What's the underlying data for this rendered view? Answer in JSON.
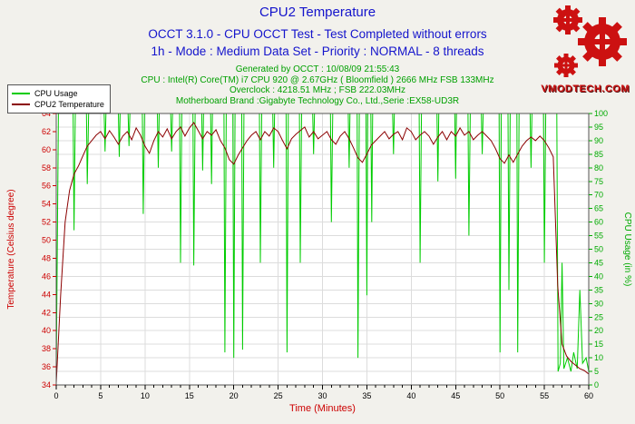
{
  "header": {
    "title": "CPU2 Temperature",
    "subtitle1": "OCCT 3.1.0 - CPU OCCT Test - Test Completed without errors",
    "subtitle2": "1h - Mode : Medium Data Set - Priority : NORMAL - 8 threads",
    "info_lines": [
      "Generated by OCCT : 10/08/09 21:55:43",
      "CPU : Intel(R) Core(TM) i7 CPU 920 @ 2.67GHz ( Bloomfield ) 2666 MHz FSB 133MHz",
      "Overclock : 4218.51 MHz ; FSB 222.03MHz",
      "Motherboard Brand :Gigabyte Technology Co., Ltd.,Serie :EX58-UD3R"
    ]
  },
  "legend": {
    "items": [
      {
        "label": "CPU Usage",
        "color": "#00CC00"
      },
      {
        "label": "CPU2 Temperature",
        "color": "#8B0000"
      }
    ]
  },
  "logo": {
    "text": "VMODTECH.COM"
  },
  "colors": {
    "title_text": "#1414CC",
    "info_text": "#00A000",
    "axis_left": "#CC0000",
    "axis_right": "#00AA00",
    "tick_x": "#000000",
    "grid": "#DCDCDC",
    "plot_border": "#555555",
    "page_bg": "#F2F1EC",
    "plot_bg": "#FFFFFF",
    "logo_red": "#CC1111"
  },
  "chart_data": {
    "type": "line",
    "title": "CPU2 Temperature",
    "grid": true,
    "legend_position": "top-left",
    "x_axis": {
      "title": "Time (Minutes)",
      "min": 0,
      "max": 60,
      "major_step": 5,
      "minor_step": 1
    },
    "left_axis": {
      "title": "Temperature (Celsius degree)",
      "min": 34,
      "max": 64,
      "step": 2
    },
    "right_axis": {
      "title": "CPU Usage (in %)",
      "min": 0,
      "max": 100,
      "step": 5
    },
    "series": [
      {
        "name": "CPU Usage",
        "axis": "right",
        "color": "#00CC00",
        "points": [
          [
            0,
            3
          ],
          [
            0.25,
            100
          ],
          [
            1.9,
            100
          ],
          [
            2,
            57
          ],
          [
            2.15,
            100
          ],
          [
            3.4,
            100
          ],
          [
            3.5,
            74
          ],
          [
            3.65,
            100
          ],
          [
            5.4,
            100
          ],
          [
            5.5,
            86
          ],
          [
            5.6,
            100
          ],
          [
            7,
            100
          ],
          [
            7.1,
            84
          ],
          [
            7.2,
            100
          ],
          [
            8.1,
            100
          ],
          [
            8.2,
            88
          ],
          [
            8.3,
            100
          ],
          [
            9.7,
            100
          ],
          [
            9.8,
            63
          ],
          [
            9.95,
            100
          ],
          [
            11.4,
            100
          ],
          [
            11.5,
            80
          ],
          [
            11.6,
            100
          ],
          [
            12.9,
            100
          ],
          [
            13,
            86
          ],
          [
            13.1,
            100
          ],
          [
            13.9,
            100
          ],
          [
            14,
            45
          ],
          [
            14.15,
            100
          ],
          [
            15.4,
            100
          ],
          [
            15.5,
            44
          ],
          [
            15.65,
            100
          ],
          [
            16.4,
            100
          ],
          [
            16.5,
            79
          ],
          [
            16.6,
            100
          ],
          [
            17.4,
            100
          ],
          [
            17.5,
            74
          ],
          [
            17.6,
            100
          ],
          [
            18.9,
            100
          ],
          [
            19,
            12
          ],
          [
            19.15,
            100
          ],
          [
            19.9,
            100
          ],
          [
            20,
            10
          ],
          [
            20.15,
            100
          ],
          [
            20.9,
            100
          ],
          [
            21,
            13
          ],
          [
            21.15,
            100
          ],
          [
            22.9,
            100
          ],
          [
            23,
            45
          ],
          [
            23.15,
            100
          ],
          [
            24.4,
            100
          ],
          [
            24.5,
            80
          ],
          [
            24.6,
            100
          ],
          [
            25.9,
            100
          ],
          [
            26,
            12
          ],
          [
            26.15,
            100
          ],
          [
            27.4,
            100
          ],
          [
            27.5,
            45
          ],
          [
            27.65,
            100
          ],
          [
            28.9,
            100
          ],
          [
            29,
            85
          ],
          [
            29.1,
            100
          ],
          [
            30.9,
            100
          ],
          [
            31,
            60
          ],
          [
            31.15,
            100
          ],
          [
            32.9,
            100
          ],
          [
            33,
            80
          ],
          [
            33.1,
            100
          ],
          [
            33.9,
            100
          ],
          [
            34,
            10
          ],
          [
            34.15,
            100
          ],
          [
            34.9,
            100
          ],
          [
            35,
            33
          ],
          [
            35.1,
            100
          ],
          [
            35.45,
            100
          ],
          [
            35.55,
            60
          ],
          [
            35.65,
            100
          ],
          [
            37.9,
            100
          ],
          [
            38,
            85
          ],
          [
            38.1,
            100
          ],
          [
            40.9,
            100
          ],
          [
            41,
            45
          ],
          [
            41.15,
            100
          ],
          [
            42.9,
            100
          ],
          [
            43,
            75
          ],
          [
            43.1,
            100
          ],
          [
            44.9,
            100
          ],
          [
            45,
            76
          ],
          [
            45.1,
            100
          ],
          [
            46.4,
            100
          ],
          [
            46.5,
            55
          ],
          [
            46.65,
            100
          ],
          [
            47.9,
            100
          ],
          [
            48,
            85
          ],
          [
            48.1,
            100
          ],
          [
            49.9,
            100
          ],
          [
            50,
            12
          ],
          [
            50.15,
            100
          ],
          [
            50.9,
            100
          ],
          [
            51,
            35
          ],
          [
            51.15,
            100
          ],
          [
            51.9,
            100
          ],
          [
            52,
            12
          ],
          [
            52.15,
            100
          ],
          [
            53.4,
            100
          ],
          [
            53.5,
            80
          ],
          [
            53.6,
            100
          ],
          [
            54.9,
            100
          ],
          [
            55,
            45
          ],
          [
            55.15,
            100
          ],
          [
            56.4,
            100
          ],
          [
            56.55,
            5
          ],
          [
            56.8,
            8
          ],
          [
            57,
            45
          ],
          [
            57.2,
            6
          ],
          [
            57.6,
            10
          ],
          [
            58,
            5
          ],
          [
            58.3,
            12
          ],
          [
            58.7,
            6
          ],
          [
            59,
            35
          ],
          [
            59.3,
            8
          ],
          [
            59.7,
            10
          ],
          [
            60,
            5
          ]
        ]
      },
      {
        "name": "CPU2 Temperature",
        "axis": "left",
        "color": "#8B0000",
        "t0": 0,
        "dt": 0.5,
        "values": [
          34.2,
          44,
          52,
          55.5,
          57.3,
          58.2,
          59.3,
          60.4,
          61,
          61.6,
          62,
          61.2,
          62.1,
          61.4,
          60.6,
          61.5,
          62,
          61.1,
          62.4,
          61.6,
          60.4,
          59.6,
          61,
          62,
          61.4,
          62.3,
          61.2,
          62,
          62.5,
          61.5,
          62.4,
          63,
          62.1,
          61.2,
          62,
          61.6,
          62.2,
          61,
          60.2,
          58.9,
          58.4,
          59.4,
          60.2,
          61,
          61.6,
          62,
          61.1,
          62,
          61.5,
          62.4,
          62,
          61,
          60.1,
          61.2,
          61.7,
          62.1,
          62.5,
          61.4,
          62,
          61.2,
          61.6,
          62,
          61.1,
          60.6,
          61.5,
          62,
          61.2,
          60.2,
          59.1,
          58.6,
          59.5,
          60.5,
          61,
          61.5,
          62,
          61.2,
          61.7,
          62,
          61.1,
          62.4,
          62,
          61.1,
          61.6,
          62,
          61.5,
          60.6,
          61.4,
          62,
          61.1,
          62,
          61.5,
          62.4,
          61.6,
          62,
          61.1,
          61.6,
          62,
          61.5,
          61,
          60.1,
          59,
          58.5,
          59.4,
          58.6,
          59.5,
          60.4,
          61,
          61.4,
          61,
          61.5,
          61,
          60.2,
          59.2,
          45,
          38.5,
          37.2,
          36.6,
          36.2,
          35.8,
          35.6,
          35.2
        ]
      }
    ]
  }
}
